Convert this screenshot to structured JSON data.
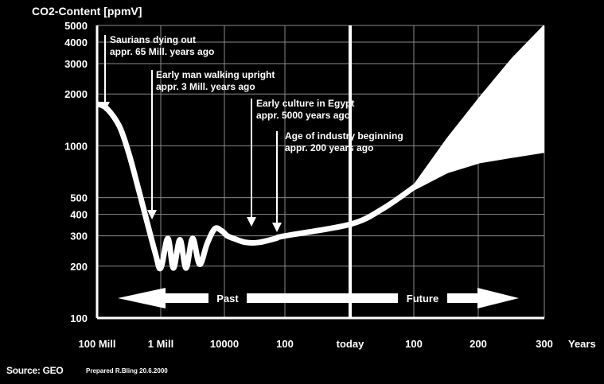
{
  "chart_data": {
    "type": "line",
    "title": "CO2-Content  [ppmV]",
    "ylabel": "CO2-Content  [ppmV]",
    "xlabel": "Years",
    "y_scale": "log",
    "ylim": [
      100,
      5000
    ],
    "y_ticks": [
      100,
      200,
      300,
      400,
      500,
      1000,
      2000,
      3000,
      4000,
      5000
    ],
    "x_ticks": [
      "100 Mill",
      "1 Mill",
      "10000",
      "100",
      "today",
      "100",
      "200",
      "300"
    ],
    "x_axis_note": "Past on a logarithmic scale of years ago (100 Mill to today); Future on a linear scale of years (today to 300)",
    "grid": true,
    "series": [
      {
        "name": "",
        "x": [
          "100 Mill",
          "50 Mill",
          "20 Mill",
          "10 Mill",
          "5 Mill",
          "1.5 Mill",
          "1 Mill",
          "600000",
          "400000",
          "250000",
          "160000",
          "100000",
          "60000",
          "35000",
          "20000",
          "12000",
          "8000",
          "5000",
          "2000",
          "700",
          "200",
          "100",
          "today",
          "50 (future)",
          "100 (future)"
        ],
        "values": [
          1750,
          1650,
          1300,
          900,
          560,
          240,
          195,
          290,
          195,
          285,
          195,
          290,
          205,
          270,
          330,
          320,
          300,
          290,
          275,
          275,
          290,
          300,
          350,
          430,
          580
        ]
      }
    ],
    "projection": {
      "x": [
        "100",
        "150",
        "200",
        "250",
        "300"
      ],
      "upper": [
        600,
        1100,
        1900,
        3200,
        5000
      ],
      "lower": [
        560,
        700,
        800,
        860,
        920
      ]
    },
    "arrows": {
      "past_label": "Past",
      "future_label": "Future"
    },
    "annotations": [
      {
        "line1": "Saurians dying out",
        "line2": "appr. 65 Mill. years ago"
      },
      {
        "line1": "Early man walking upright",
        "line2": "appr. 3 Mill. years ago"
      },
      {
        "line1": "Early culture in Egypt",
        "line2": "appr. 5000 years ago"
      },
      {
        "line1": "Age of industry beginning",
        "line2": "appr. 200 years ago"
      }
    ]
  },
  "footer": {
    "source": "Source: GEO",
    "prepared": "Prepared R.Bling 20.6.2000"
  }
}
